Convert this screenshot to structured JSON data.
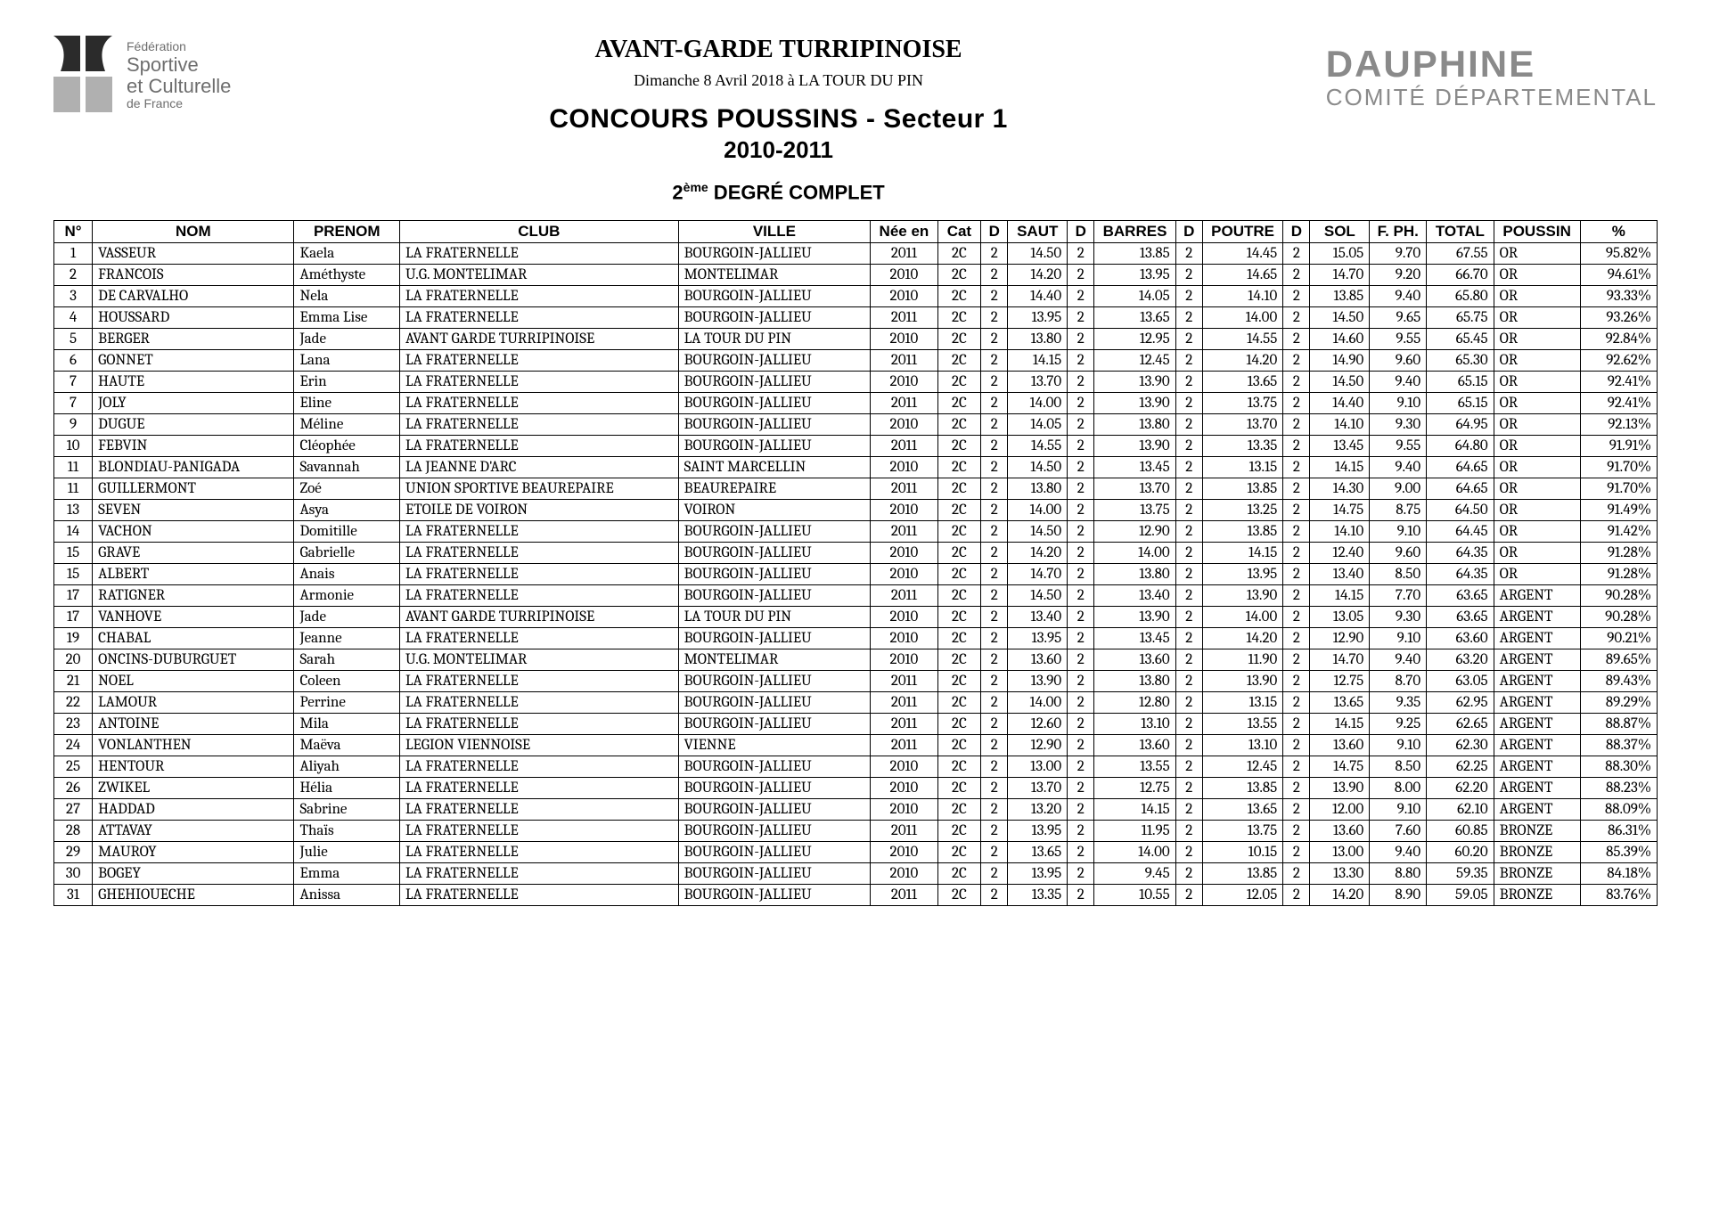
{
  "header": {
    "org_small1": "Fédération",
    "org_big1": "Sportive",
    "org_big2": "et Culturelle",
    "org_small2": "de France",
    "title1": "AVANT-GARDE TURRIPINOISE",
    "title2": "Dimanche 8 Avril 2018 à LA TOUR DU PIN",
    "title3": "CONCOURS POUSSINS - Secteur 1",
    "title4": "2010-2011",
    "degree_prefix": "2",
    "degree_sup": "ème",
    "degree_suffix": " DEGRÉ COMPLET",
    "right1": "DAUPHINE",
    "right2": "COMITÉ DÉPARTEMENTAL"
  },
  "columns": [
    "N°",
    "NOM",
    "PRENOM",
    "CLUB",
    "VILLE",
    "Née en",
    "Cat",
    "D",
    "SAUT",
    "D",
    "BARRES",
    "D",
    "POUTRE",
    "D",
    "SOL",
    "F. PH.",
    "TOTAL",
    "POUSSIN",
    "%"
  ],
  "rows": [
    [
      "1",
      "VASSEUR",
      "Kaela",
      "LA FRATERNELLE",
      "BOURGOIN-JALLIEU",
      "2011",
      "2C",
      "2",
      "14.50",
      "2",
      "13.85",
      "2",
      "14.45",
      "2",
      "15.05",
      "9.70",
      "67.55",
      "OR",
      "95.82%"
    ],
    [
      "2",
      "FRANCOIS",
      "Améthyste",
      "U.G. MONTELIMAR",
      "MONTELIMAR",
      "2010",
      "2C",
      "2",
      "14.20",
      "2",
      "13.95",
      "2",
      "14.65",
      "2",
      "14.70",
      "9.20",
      "66.70",
      "OR",
      "94.61%"
    ],
    [
      "3",
      "DE CARVALHO",
      "Nela",
      "LA FRATERNELLE",
      "BOURGOIN-JALLIEU",
      "2010",
      "2C",
      "2",
      "14.40",
      "2",
      "14.05",
      "2",
      "14.10",
      "2",
      "13.85",
      "9.40",
      "65.80",
      "OR",
      "93.33%"
    ],
    [
      "4",
      "HOUSSARD",
      "Emma Lise",
      "LA FRATERNELLE",
      "BOURGOIN-JALLIEU",
      "2011",
      "2C",
      "2",
      "13.95",
      "2",
      "13.65",
      "2",
      "14.00",
      "2",
      "14.50",
      "9.65",
      "65.75",
      "OR",
      "93.26%"
    ],
    [
      "5",
      "BERGER",
      "Jade",
      "AVANT GARDE TURRIPINOISE",
      "LA TOUR DU PIN",
      "2010",
      "2C",
      "2",
      "13.80",
      "2",
      "12.95",
      "2",
      "14.55",
      "2",
      "14.60",
      "9.55",
      "65.45",
      "OR",
      "92.84%"
    ],
    [
      "6",
      "GONNET",
      "Lana",
      "LA FRATERNELLE",
      "BOURGOIN-JALLIEU",
      "2011",
      "2C",
      "2",
      "14.15",
      "2",
      "12.45",
      "2",
      "14.20",
      "2",
      "14.90",
      "9.60",
      "65.30",
      "OR",
      "92.62%"
    ],
    [
      "7",
      "HAUTE",
      "Erin",
      "LA FRATERNELLE",
      "BOURGOIN-JALLIEU",
      "2010",
      "2C",
      "2",
      "13.70",
      "2",
      "13.90",
      "2",
      "13.65",
      "2",
      "14.50",
      "9.40",
      "65.15",
      "OR",
      "92.41%"
    ],
    [
      "7",
      "JOLY",
      "Eline",
      "LA FRATERNELLE",
      "BOURGOIN-JALLIEU",
      "2011",
      "2C",
      "2",
      "14.00",
      "2",
      "13.90",
      "2",
      "13.75",
      "2",
      "14.40",
      "9.10",
      "65.15",
      "OR",
      "92.41%"
    ],
    [
      "9",
      "DUGUE",
      "Méline",
      "LA FRATERNELLE",
      "BOURGOIN-JALLIEU",
      "2010",
      "2C",
      "2",
      "14.05",
      "2",
      "13.80",
      "2",
      "13.70",
      "2",
      "14.10",
      "9.30",
      "64.95",
      "OR",
      "92.13%"
    ],
    [
      "10",
      "FEBVIN",
      "Cléophée",
      "LA FRATERNELLE",
      "BOURGOIN-JALLIEU",
      "2011",
      "2C",
      "2",
      "14.55",
      "2",
      "13.90",
      "2",
      "13.35",
      "2",
      "13.45",
      "9.55",
      "64.80",
      "OR",
      "91.91%"
    ],
    [
      "11",
      "BLONDIAU-PANIGADA",
      "Savannah",
      "LA JEANNE D'ARC",
      "SAINT MARCELLIN",
      "2010",
      "2C",
      "2",
      "14.50",
      "2",
      "13.45",
      "2",
      "13.15",
      "2",
      "14.15",
      "9.40",
      "64.65",
      "OR",
      "91.70%"
    ],
    [
      "11",
      "GUILLERMONT",
      "Zoé",
      "UNION SPORTIVE BEAUREPAIRE",
      "BEAUREPAIRE",
      "2011",
      "2C",
      "2",
      "13.80",
      "2",
      "13.70",
      "2",
      "13.85",
      "2",
      "14.30",
      "9.00",
      "64.65",
      "OR",
      "91.70%"
    ],
    [
      "13",
      "SEVEN",
      "Asya",
      "ETOILE DE VOIRON",
      "VOIRON",
      "2010",
      "2C",
      "2",
      "14.00",
      "2",
      "13.75",
      "2",
      "13.25",
      "2",
      "14.75",
      "8.75",
      "64.50",
      "OR",
      "91.49%"
    ],
    [
      "14",
      "VACHON",
      "Domitille",
      "LA FRATERNELLE",
      "BOURGOIN-JALLIEU",
      "2011",
      "2C",
      "2",
      "14.50",
      "2",
      "12.90",
      "2",
      "13.85",
      "2",
      "14.10",
      "9.10",
      "64.45",
      "OR",
      "91.42%"
    ],
    [
      "15",
      "GRAVE",
      "Gabrielle",
      "LA FRATERNELLE",
      "BOURGOIN-JALLIEU",
      "2010",
      "2C",
      "2",
      "14.20",
      "2",
      "14.00",
      "2",
      "14.15",
      "2",
      "12.40",
      "9.60",
      "64.35",
      "OR",
      "91.28%"
    ],
    [
      "15",
      "ALBERT",
      "Anais",
      "LA FRATERNELLE",
      "BOURGOIN-JALLIEU",
      "2010",
      "2C",
      "2",
      "14.70",
      "2",
      "13.80",
      "2",
      "13.95",
      "2",
      "13.40",
      "8.50",
      "64.35",
      "OR",
      "91.28%"
    ],
    [
      "17",
      "RATIGNER",
      "Armonie",
      "LA FRATERNELLE",
      "BOURGOIN-JALLIEU",
      "2011",
      "2C",
      "2",
      "14.50",
      "2",
      "13.40",
      "2",
      "13.90",
      "2",
      "14.15",
      "7.70",
      "63.65",
      "ARGENT",
      "90.28%"
    ],
    [
      "17",
      "VANHOVE",
      "Jade",
      "AVANT GARDE TURRIPINOISE",
      "LA TOUR DU PIN",
      "2010",
      "2C",
      "2",
      "13.40",
      "2",
      "13.90",
      "2",
      "14.00",
      "2",
      "13.05",
      "9.30",
      "63.65",
      "ARGENT",
      "90.28%"
    ],
    [
      "19",
      "CHABAL",
      "Jeanne",
      "LA FRATERNELLE",
      "BOURGOIN-JALLIEU",
      "2010",
      "2C",
      "2",
      "13.95",
      "2",
      "13.45",
      "2",
      "14.20",
      "2",
      "12.90",
      "9.10",
      "63.60",
      "ARGENT",
      "90.21%"
    ],
    [
      "20",
      "ONCINS-DUBURGUET",
      "Sarah",
      "U.G. MONTELIMAR",
      "MONTELIMAR",
      "2010",
      "2C",
      "2",
      "13.60",
      "2",
      "13.60",
      "2",
      "11.90",
      "2",
      "14.70",
      "9.40",
      "63.20",
      "ARGENT",
      "89.65%"
    ],
    [
      "21",
      "NOEL",
      "Coleen",
      "LA FRATERNELLE",
      "BOURGOIN-JALLIEU",
      "2011",
      "2C",
      "2",
      "13.90",
      "2",
      "13.80",
      "2",
      "13.90",
      "2",
      "12.75",
      "8.70",
      "63.05",
      "ARGENT",
      "89.43%"
    ],
    [
      "22",
      "LAMOUR",
      "Perrine",
      "LA FRATERNELLE",
      "BOURGOIN-JALLIEU",
      "2011",
      "2C",
      "2",
      "14.00",
      "2",
      "12.80",
      "2",
      "13.15",
      "2",
      "13.65",
      "9.35",
      "62.95",
      "ARGENT",
      "89.29%"
    ],
    [
      "23",
      "ANTOINE",
      "Mila",
      "LA FRATERNELLE",
      "BOURGOIN-JALLIEU",
      "2011",
      "2C",
      "2",
      "12.60",
      "2",
      "13.10",
      "2",
      "13.55",
      "2",
      "14.15",
      "9.25",
      "62.65",
      "ARGENT",
      "88.87%"
    ],
    [
      "24",
      "VONLANTHEN",
      "Maëva",
      "LEGION VIENNOISE",
      "VIENNE",
      "2011",
      "2C",
      "2",
      "12.90",
      "2",
      "13.60",
      "2",
      "13.10",
      "2",
      "13.60",
      "9.10",
      "62.30",
      "ARGENT",
      "88.37%"
    ],
    [
      "25",
      "HENTOUR",
      "Aliyah",
      "LA FRATERNELLE",
      "BOURGOIN-JALLIEU",
      "2010",
      "2C",
      "2",
      "13.00",
      "2",
      "13.55",
      "2",
      "12.45",
      "2",
      "14.75",
      "8.50",
      "62.25",
      "ARGENT",
      "88.30%"
    ],
    [
      "26",
      "ZWIKEL",
      "Hélia",
      "LA FRATERNELLE",
      "BOURGOIN-JALLIEU",
      "2010",
      "2C",
      "2",
      "13.70",
      "2",
      "12.75",
      "2",
      "13.85",
      "2",
      "13.90",
      "8.00",
      "62.20",
      "ARGENT",
      "88.23%"
    ],
    [
      "27",
      "HADDAD",
      "Sabrine",
      "LA FRATERNELLE",
      "BOURGOIN-JALLIEU",
      "2010",
      "2C",
      "2",
      "13.20",
      "2",
      "14.15",
      "2",
      "13.65",
      "2",
      "12.00",
      "9.10",
      "62.10",
      "ARGENT",
      "88.09%"
    ],
    [
      "28",
      "ATTAVAY",
      "Thaïs",
      "LA FRATERNELLE",
      "BOURGOIN-JALLIEU",
      "2011",
      "2C",
      "2",
      "13.95",
      "2",
      "11.95",
      "2",
      "13.75",
      "2",
      "13.60",
      "7.60",
      "60.85",
      "BRONZE",
      "86.31%"
    ],
    [
      "29",
      "MAUROY",
      "Julie",
      "LA FRATERNELLE",
      "BOURGOIN-JALLIEU",
      "2010",
      "2C",
      "2",
      "13.65",
      "2",
      "14.00",
      "2",
      "10.15",
      "2",
      "13.00",
      "9.40",
      "60.20",
      "BRONZE",
      "85.39%"
    ],
    [
      "30",
      "BOGEY",
      "Emma",
      "LA FRATERNELLE",
      "BOURGOIN-JALLIEU",
      "2010",
      "2C",
      "2",
      "13.95",
      "2",
      "9.45",
      "2",
      "13.85",
      "2",
      "13.30",
      "8.80",
      "59.35",
      "BRONZE",
      "84.18%"
    ],
    [
      "31",
      "GHEHIOUECHE",
      "Anissa",
      "LA FRATERNELLE",
      "BOURGOIN-JALLIEU",
      "2011",
      "2C",
      "2",
      "13.35",
      "2",
      "10.55",
      "2",
      "12.05",
      "2",
      "14.20",
      "8.90",
      "59.05",
      "BRONZE",
      "83.76%"
    ]
  ],
  "style": {
    "col_classes": [
      "c-num",
      "c-nom",
      "c-prenom",
      "c-club",
      "c-ville",
      "c-nee",
      "c-cat",
      "c-d",
      "c-score",
      "c-d",
      "c-score2",
      "c-d",
      "c-score2",
      "c-d",
      "c-score",
      "c-fph",
      "c-total",
      "c-medal",
      "c-pct"
    ]
  }
}
